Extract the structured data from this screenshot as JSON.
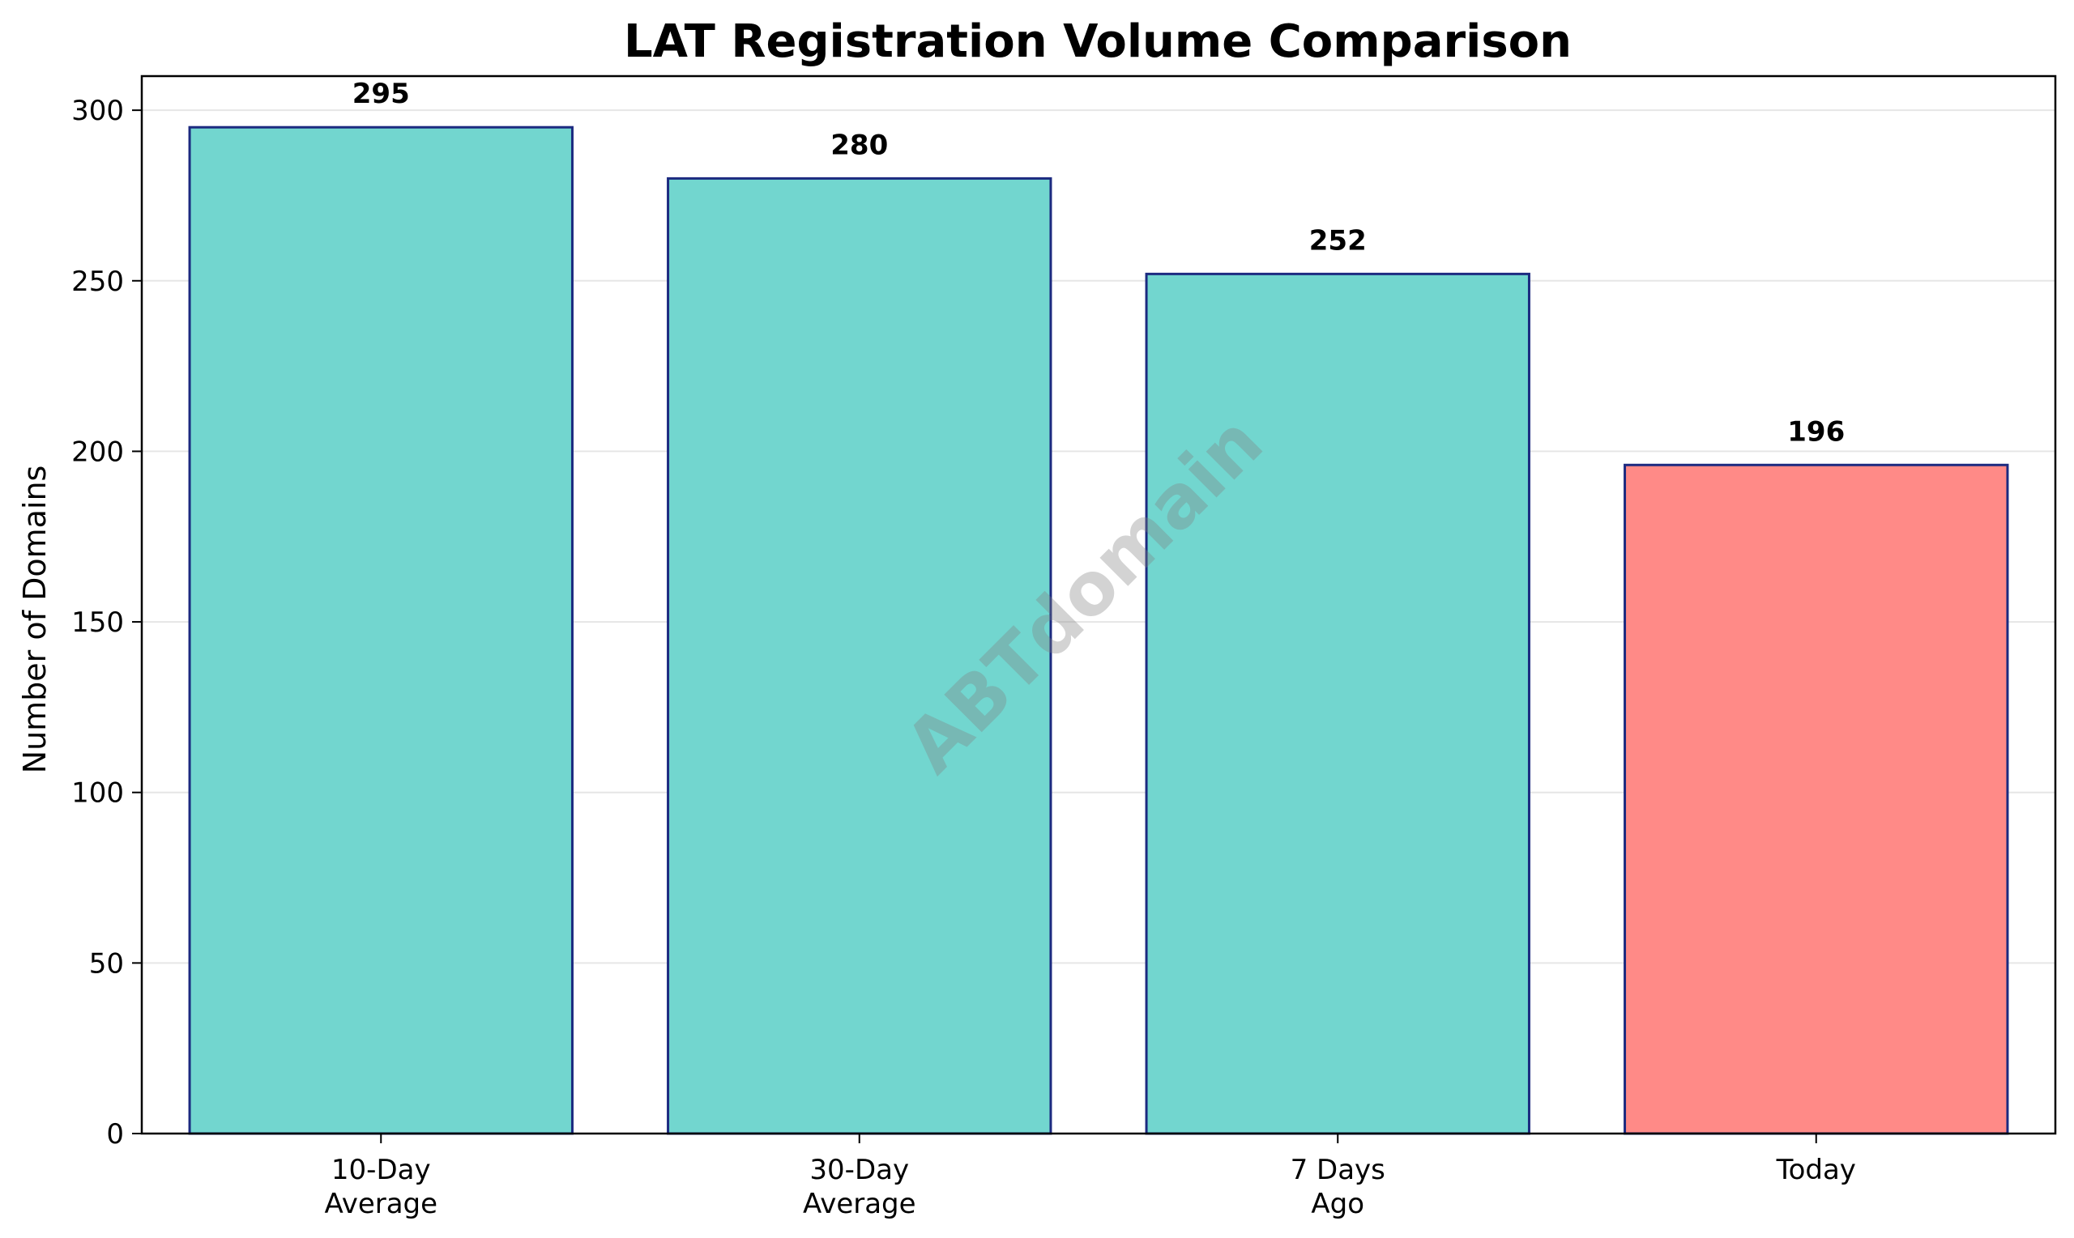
{
  "chart_data": {
    "type": "bar",
    "title": "LAT Registration Volume Comparison",
    "xlabel": "",
    "ylabel": "Number of Domains",
    "categories": [
      [
        "10-Day",
        "Average"
      ],
      [
        "30-Day",
        "Average"
      ],
      [
        "7 Days",
        "Ago"
      ],
      [
        "Today"
      ]
    ],
    "values": [
      295,
      280,
      252,
      196
    ],
    "value_labels": [
      "295",
      "280",
      "252",
      "196"
    ],
    "ylim": [
      0,
      310
    ],
    "yticks": [
      0,
      50,
      100,
      150,
      200,
      250,
      300
    ],
    "grid": "y-major",
    "colors": {
      "bar_default": "#72d6cf",
      "bar_highlight": "#ff8a87",
      "bar_edge": "#1c2a80",
      "grid": "#e6e6e6",
      "axis": "#000000"
    },
    "highlight_index": 3,
    "watermark": "ABTdomain"
  }
}
